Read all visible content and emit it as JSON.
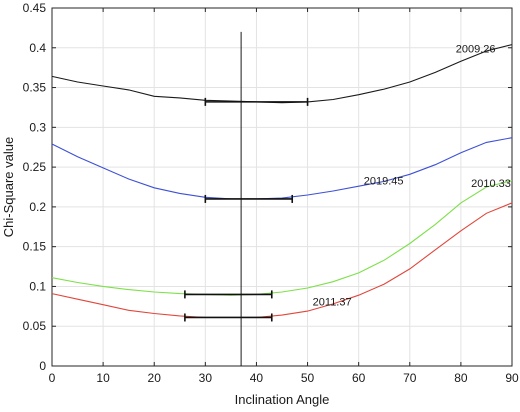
{
  "chart_data": {
    "type": "line",
    "title": "",
    "xlabel": "Inclination Angle",
    "ylabel": "Chi-Square value",
    "xlim": [
      0,
      90
    ],
    "ylim": [
      0,
      0.45
    ],
    "x_ticks": [
      "0",
      "10",
      "20",
      "30",
      "40",
      "50",
      "60",
      "70",
      "80",
      "90"
    ],
    "y_ticks": [
      "0",
      "0.05",
      "0.1",
      "0.15",
      "0.2",
      "0.25",
      "0.3",
      "0.35",
      "0.4",
      "0.45"
    ],
    "grid": true,
    "x": [
      0,
      5,
      10,
      15,
      20,
      25,
      30,
      35,
      40,
      45,
      50,
      55,
      60,
      65,
      70,
      75,
      80,
      85,
      90
    ],
    "series": [
      {
        "name": "2009.26",
        "color": "#1a1a1a",
        "values": [
          0.364,
          0.357,
          0.352,
          0.347,
          0.339,
          0.337,
          0.334,
          0.333,
          0.332,
          0.331,
          0.332,
          0.335,
          0.341,
          0.348,
          0.357,
          0.369,
          0.383,
          0.396,
          0.404
        ],
        "error_bar": {
          "y": 0.332,
          "x_low": 30,
          "x_high": 50
        }
      },
      {
        "name": "2019.45",
        "color": "#3d50d6",
        "values": [
          0.279,
          0.263,
          0.249,
          0.235,
          0.224,
          0.217,
          0.212,
          0.21,
          0.21,
          0.211,
          0.215,
          0.22,
          0.226,
          0.232,
          0.241,
          0.253,
          0.268,
          0.281,
          0.287
        ],
        "error_bar": {
          "y": 0.21,
          "x_low": 30,
          "x_high": 47
        }
      },
      {
        "name": "2010.33",
        "color": "#7de04a",
        "values": [
          0.111,
          0.105,
          0.1,
          0.096,
          0.093,
          0.091,
          0.09,
          0.089,
          0.09,
          0.093,
          0.098,
          0.106,
          0.117,
          0.133,
          0.154,
          0.178,
          0.205,
          0.225,
          0.233
        ],
        "error_bar": {
          "y": 0.09,
          "x_low": 26,
          "x_high": 43
        }
      },
      {
        "name": "2011.37",
        "color": "#e0463a",
        "values": [
          0.091,
          0.084,
          0.077,
          0.07,
          0.066,
          0.063,
          0.061,
          0.061,
          0.061,
          0.064,
          0.069,
          0.078,
          0.089,
          0.103,
          0.122,
          0.146,
          0.17,
          0.192,
          0.205
        ],
        "error_bar": {
          "y": 0.061,
          "x_low": 26,
          "x_high": 43
        }
      }
    ],
    "vertical_line": {
      "x": 37,
      "color": "#1a1a1a"
    },
    "series_labels": [
      {
        "text": "2009.26",
        "x": 79,
        "y": 0.394
      },
      {
        "text": "2019.45",
        "x": 61,
        "y": 0.228
      },
      {
        "text": "2010.33",
        "x": 82,
        "y": 0.225
      },
      {
        "text": "2011.37",
        "x": 51,
        "y": 0.076
      }
    ]
  }
}
